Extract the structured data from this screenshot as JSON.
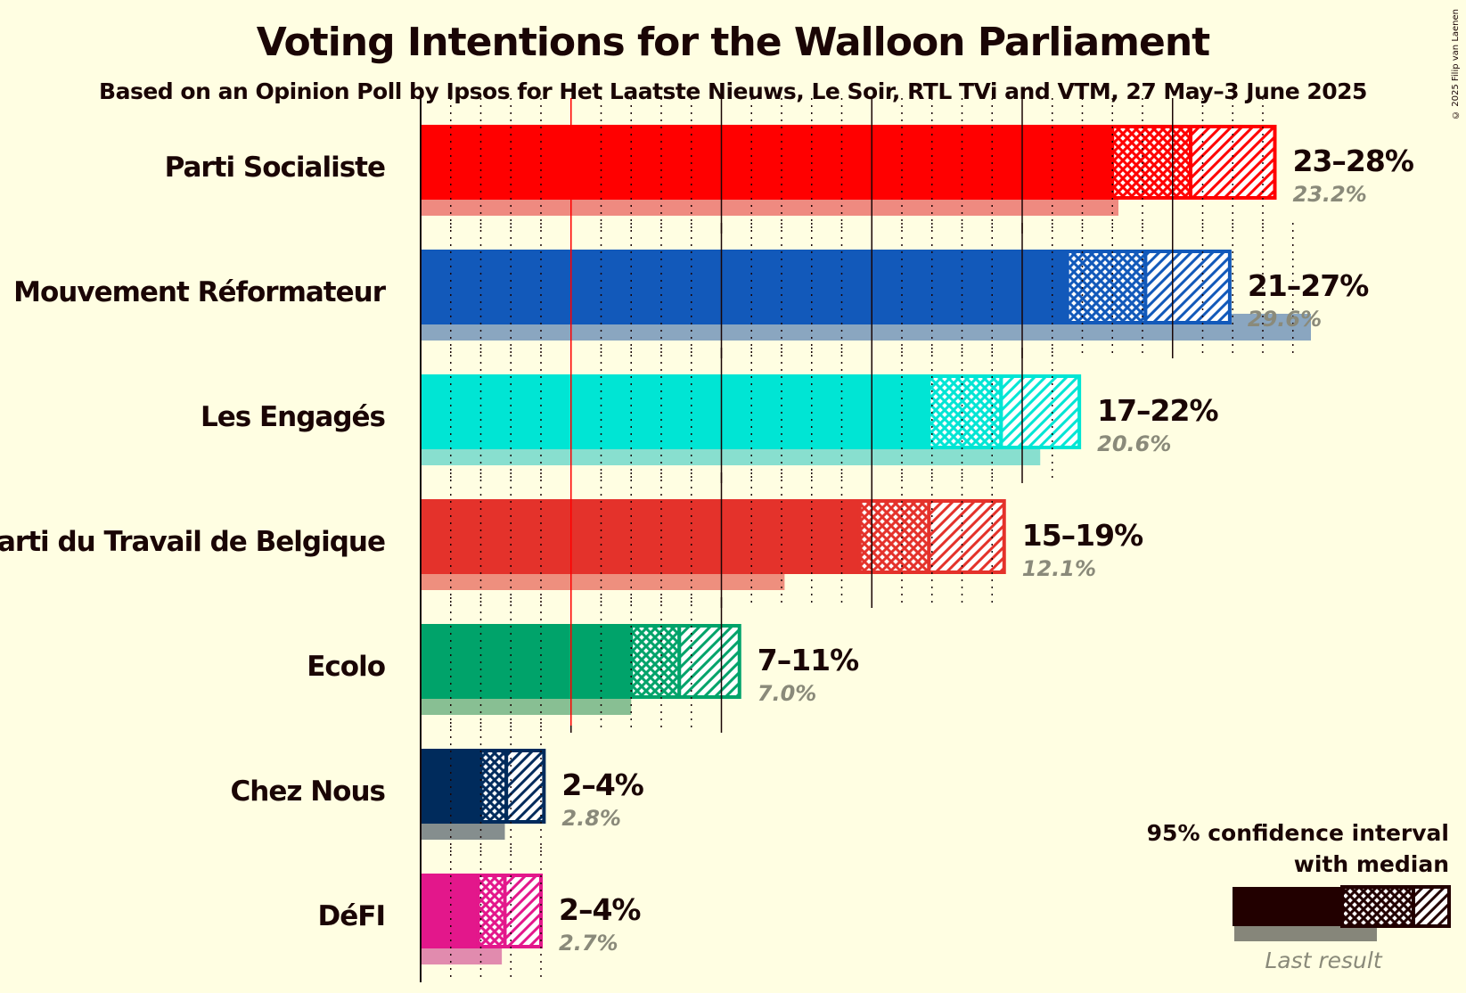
{
  "title": "Voting Intentions for the Walloon Parliament",
  "subtitle": "Based on an Opinion Poll by Ipsos for Het Laatste Nieuws, Le Soir, RTL TVi and VTM, 27 May–3 June 2025",
  "copyright": "© 2025 Filip van Laenen",
  "legend": {
    "ci_line1": "95% confidence interval",
    "ci_line2": "with median",
    "last_result": "Last result"
  },
  "chart_data": {
    "type": "bar",
    "orientation": "horizontal",
    "xlim": [
      0,
      30
    ],
    "threshold": 5,
    "categories": [
      "Parti Socialiste",
      "Mouvement Réformateur",
      "Les Engagés",
      "Parti du Travail de Belgique",
      "Ecolo",
      "Chez Nous",
      "DéFI"
    ],
    "series": [
      {
        "party": "Parti Socialiste",
        "color": "#FF0000",
        "last_color": "#EF8A80",
        "ci_low": 23,
        "median": 25.6,
        "ci_high": 28.4,
        "range_label": "23–28%",
        "last_result": 23.2,
        "last_label": "23.2%"
      },
      {
        "party": "Mouvement Réformateur",
        "color": "#1259BA",
        "last_color": "#8AA6C0",
        "ci_low": 21.5,
        "median": 24.1,
        "ci_high": 26.9,
        "range_label": "21–27%",
        "last_result": 29.6,
        "last_label": "29.6%"
      },
      {
        "party": "Les Engagés",
        "color": "#00E5D4",
        "last_color": "#88DFCF",
        "ci_low": 16.9,
        "median": 19.3,
        "ci_high": 21.9,
        "range_label": "17–22%",
        "last_result": 20.6,
        "last_label": "20.6%"
      },
      {
        "party": "Parti du Travail de Belgique",
        "color": "#E4322B",
        "last_color": "#EE8F7E",
        "ci_low": 14.6,
        "median": 16.9,
        "ci_high": 19.4,
        "range_label": "15–19%",
        "last_result": 12.1,
        "last_label": "12.1%"
      },
      {
        "party": "Ecolo",
        "color": "#00A36A",
        "last_color": "#88BF93",
        "ci_low": 7.0,
        "median": 8.6,
        "ci_high": 10.6,
        "range_label": "7–11%",
        "last_result": 7.0,
        "last_label": "7.0%"
      },
      {
        "party": "Chez Nous",
        "color": "#002B5C",
        "last_color": "#858E8E",
        "ci_low": 2.0,
        "median": 2.85,
        "ci_high": 4.1,
        "range_label": "2–4%",
        "last_result": 2.8,
        "last_label": "2.8%"
      },
      {
        "party": "DéFI",
        "color": "#E3178B",
        "last_color": "#E18BAE",
        "ci_low": 1.9,
        "median": 2.8,
        "ci_high": 4.0,
        "range_label": "2–4%",
        "last_result": 2.7,
        "last_label": "2.7%"
      }
    ]
  }
}
